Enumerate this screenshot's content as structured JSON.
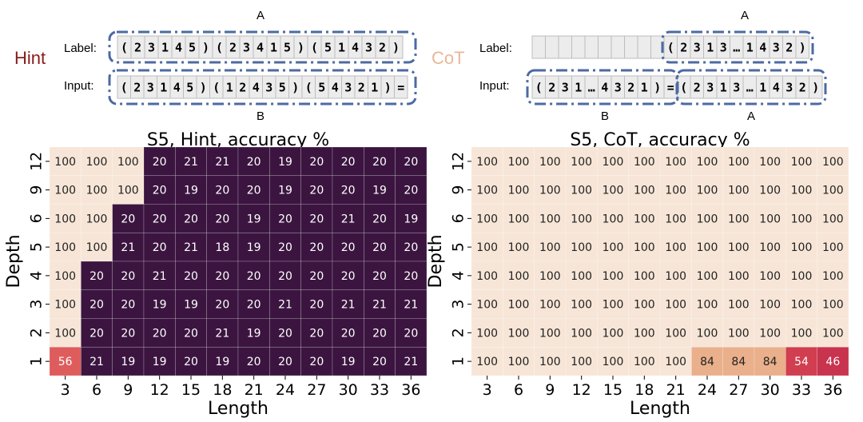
{
  "colors": {
    "low": "#3b1540",
    "high": "#f7e6d7",
    "mid84": "#eab08b",
    "mid54": "#d03e4f",
    "mid46": "#c8334e",
    "mid56": "#de5c5c",
    "dash": "#4c6aa3",
    "hint": "#8b1a1a",
    "cot": "#e8b79a"
  },
  "top": {
    "hint": {
      "tag": "Hint",
      "label_name": "Label:",
      "input_name": "Input:",
      "brace_top": "A",
      "brace_bottom": "B",
      "label_tokens": [
        "(",
        "2",
        "3",
        "1",
        "4",
        "5",
        ")",
        "(",
        "2",
        "3",
        "4",
        "1",
        "5",
        ")",
        "(",
        "5",
        "1",
        "4",
        "3",
        "2",
        ")"
      ],
      "input_tokens": [
        "(",
        "2",
        "3",
        "1",
        "4",
        "5",
        ")",
        "(",
        "1",
        "2",
        "4",
        "3",
        "5",
        ")",
        "(",
        "5",
        "4",
        "3",
        "2",
        "1",
        ")",
        "="
      ]
    },
    "cot": {
      "tag": "CoT",
      "label_name": "Label:",
      "input_name": "Input:",
      "brace_top": "A",
      "brace_bottom_left": "B",
      "brace_bottom_right": "A",
      "label_blank_count": 10,
      "label_tokens": [
        "(",
        "2",
        "3",
        "1",
        "3",
        "…",
        "1",
        "4",
        "3",
        "2",
        ")"
      ],
      "input_left_tokens": [
        "(",
        "2",
        "3",
        "1",
        "…",
        "4",
        "3",
        "2",
        "1",
        ")"
      ],
      "input_eq": "=",
      "input_right_tokens": [
        "(",
        "2",
        "3",
        "1",
        "3",
        "…",
        "1",
        "4",
        "3",
        "2",
        ")"
      ]
    }
  },
  "chart_data": [
    {
      "type": "heatmap",
      "title": "S5, Hint, accuracy %",
      "xlabel": "Length",
      "ylabel": "Depth",
      "x": [
        "3",
        "6",
        "9",
        "12",
        "15",
        "18",
        "21",
        "24",
        "27",
        "30",
        "33",
        "36"
      ],
      "y": [
        "12",
        "9",
        "6",
        "5",
        "4",
        "3",
        "2",
        "1"
      ],
      "values": [
        [
          100,
          100,
          100,
          20,
          21,
          21,
          20,
          19,
          20,
          20,
          20,
          20
        ],
        [
          100,
          100,
          100,
          20,
          19,
          20,
          20,
          19,
          20,
          20,
          19,
          20
        ],
        [
          100,
          100,
          20,
          20,
          20,
          20,
          19,
          20,
          20,
          21,
          20,
          19
        ],
        [
          100,
          100,
          21,
          20,
          21,
          18,
          19,
          20,
          20,
          20,
          20,
          20
        ],
        [
          100,
          20,
          20,
          21,
          20,
          20,
          20,
          20,
          20,
          20,
          20,
          20
        ],
        [
          100,
          20,
          20,
          19,
          19,
          20,
          20,
          21,
          20,
          21,
          21,
          21
        ],
        [
          100,
          20,
          20,
          20,
          20,
          21,
          19,
          20,
          20,
          20,
          20,
          20
        ],
        [
          56,
          21,
          19,
          19,
          20,
          19,
          20,
          20,
          20,
          19,
          20,
          21
        ]
      ]
    },
    {
      "type": "heatmap",
      "title": "S5, CoT, accuracy %",
      "xlabel": "Length",
      "ylabel": "Depth",
      "x": [
        "3",
        "6",
        "9",
        "12",
        "15",
        "18",
        "21",
        "24",
        "27",
        "30",
        "33",
        "36"
      ],
      "y": [
        "12",
        "9",
        "6",
        "5",
        "4",
        "3",
        "2",
        "1"
      ],
      "values": [
        [
          100,
          100,
          100,
          100,
          100,
          100,
          100,
          100,
          100,
          100,
          100,
          100
        ],
        [
          100,
          100,
          100,
          100,
          100,
          100,
          100,
          100,
          100,
          100,
          100,
          100
        ],
        [
          100,
          100,
          100,
          100,
          100,
          100,
          100,
          100,
          100,
          100,
          100,
          100
        ],
        [
          100,
          100,
          100,
          100,
          100,
          100,
          100,
          100,
          100,
          100,
          100,
          100
        ],
        [
          100,
          100,
          100,
          100,
          100,
          100,
          100,
          100,
          100,
          100,
          100,
          100
        ],
        [
          100,
          100,
          100,
          100,
          100,
          100,
          100,
          100,
          100,
          100,
          100,
          100
        ],
        [
          100,
          100,
          100,
          100,
          100,
          100,
          100,
          100,
          100,
          100,
          100,
          100
        ],
        [
          100,
          100,
          100,
          100,
          100,
          100,
          100,
          84,
          84,
          84,
          54,
          46
        ]
      ]
    }
  ]
}
